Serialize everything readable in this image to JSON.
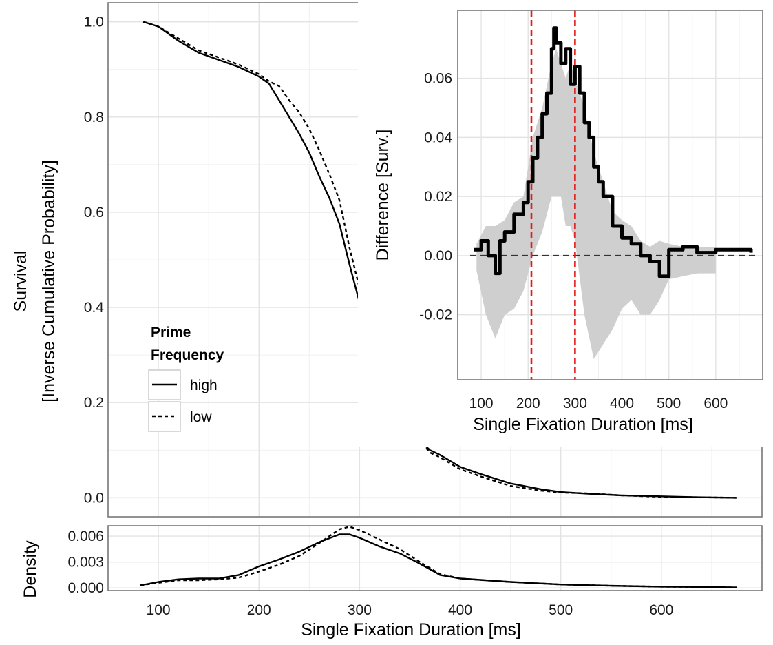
{
  "chart_data": [
    {
      "type": "line",
      "name": "survival",
      "ylabel_line1": "Survival",
      "ylabel_line2": "[Inverse Cumulative Probability]",
      "xlim": [
        50,
        700
      ],
      "ylim": [
        -0.04,
        1.04
      ],
      "yticks": [
        "0.0",
        "0.2",
        "0.4",
        "0.6",
        "0.8",
        "1.0"
      ],
      "grid": true,
      "legend": {
        "title_line1": "Prime",
        "title_line2": "Frequency",
        "placement": "center-left",
        "entries": [
          "high",
          "low"
        ]
      },
      "series": [
        {
          "name": "high",
          "style": "solid",
          "x": [
            85,
            100,
            120,
            140,
            160,
            180,
            200,
            210,
            220,
            230,
            240,
            250,
            260,
            270,
            280,
            290,
            300,
            310,
            320,
            330,
            340,
            350,
            360,
            370,
            380,
            400,
            420,
            450,
            480,
            500,
            530,
            560,
            600,
            640,
            675
          ],
          "y": [
            1.0,
            0.99,
            0.96,
            0.935,
            0.92,
            0.905,
            0.885,
            0.87,
            0.835,
            0.8,
            0.765,
            0.725,
            0.675,
            0.63,
            0.575,
            0.49,
            0.41,
            0.35,
            0.3,
            0.24,
            0.2,
            0.16,
            0.12,
            0.1,
            0.09,
            0.065,
            0.05,
            0.03,
            0.018,
            0.012,
            0.008,
            0.005,
            0.003,
            0.001,
            0.0
          ]
        },
        {
          "name": "low",
          "style": "dashed",
          "x": [
            85,
            100,
            120,
            140,
            160,
            180,
            200,
            210,
            220,
            230,
            240,
            250,
            260,
            270,
            280,
            290,
            300,
            310,
            320,
            330,
            340,
            350,
            360,
            370,
            380,
            400,
            420,
            450,
            480,
            500,
            530,
            560,
            600,
            640,
            675
          ],
          "y": [
            1.0,
            0.99,
            0.965,
            0.94,
            0.925,
            0.91,
            0.89,
            0.875,
            0.865,
            0.835,
            0.81,
            0.775,
            0.73,
            0.68,
            0.625,
            0.525,
            0.44,
            0.37,
            0.31,
            0.245,
            0.195,
            0.155,
            0.12,
            0.095,
            0.085,
            0.06,
            0.045,
            0.025,
            0.015,
            0.011,
            0.009,
            0.005,
            0.002,
            0.001,
            0.0
          ]
        }
      ]
    },
    {
      "type": "line",
      "name": "density",
      "ylabel": "Density",
      "xlabel": "Single Fixation Duration [ms]",
      "xlim": [
        50,
        700
      ],
      "ylim": [
        -0.0003,
        0.0072
      ],
      "xticks": [
        "100",
        "200",
        "300",
        "400",
        "500",
        "600"
      ],
      "yticks": [
        "0.000",
        "0.003",
        "0.006"
      ],
      "grid": true,
      "series": [
        {
          "name": "high",
          "style": "solid",
          "x": [
            82,
            100,
            120,
            140,
            160,
            180,
            200,
            220,
            240,
            260,
            280,
            290,
            300,
            320,
            340,
            360,
            380,
            400,
            450,
            500,
            550,
            600,
            650,
            675
          ],
          "y": [
            0.0003,
            0.0007,
            0.001,
            0.0011,
            0.0011,
            0.0015,
            0.0025,
            0.0033,
            0.0042,
            0.0053,
            0.0062,
            0.0062,
            0.0058,
            0.0048,
            0.004,
            0.0028,
            0.0015,
            0.0011,
            0.0007,
            0.0004,
            0.00025,
            0.00015,
            0.0001,
            5e-05
          ]
        },
        {
          "name": "low",
          "style": "dashed",
          "x": [
            82,
            100,
            120,
            140,
            160,
            180,
            200,
            220,
            240,
            260,
            280,
            290,
            300,
            320,
            340,
            360,
            380,
            400,
            450,
            500,
            550,
            600,
            650,
            675
          ],
          "y": [
            0.0003,
            0.0006,
            0.0009,
            0.0009,
            0.001,
            0.0012,
            0.0019,
            0.0027,
            0.0037,
            0.0052,
            0.0068,
            0.0071,
            0.0067,
            0.0056,
            0.0045,
            0.003,
            0.0016,
            0.0011,
            0.0007,
            0.0004,
            0.00025,
            0.00015,
            0.0001,
            5e-05
          ]
        }
      ]
    },
    {
      "type": "line",
      "name": "difference-inset",
      "ylabel": "Difference [Surv.]",
      "xlabel": "Single Fixation Duration [ms]",
      "xlim": [
        50,
        700
      ],
      "ylim": [
        -0.042,
        0.083
      ],
      "xticks": [
        "100",
        "200",
        "300",
        "400",
        "500",
        "600"
      ],
      "yticks": [
        "-0.02",
        "0.00",
        "0.02",
        "0.04",
        "0.06"
      ],
      "grid": true,
      "reference_lines": {
        "horizontal_dashed": 0.0,
        "vertical_red_dashed": [
          207,
          300
        ]
      },
      "interval": {
        "x": [
          90,
          110,
          130,
          150,
          170,
          190,
          210,
          230,
          250,
          260,
          270,
          280,
          290,
          300,
          320,
          340,
          360,
          380,
          400,
          420,
          440,
          460,
          480,
          500,
          530,
          560,
          600
        ],
        "lower": [
          -0.005,
          -0.02,
          -0.028,
          -0.02,
          -0.018,
          -0.012,
          0.0,
          0.008,
          0.02,
          0.02,
          0.02,
          0.01,
          0.01,
          0.005,
          -0.02,
          -0.035,
          -0.03,
          -0.025,
          -0.018,
          -0.015,
          -0.02,
          -0.02,
          -0.015,
          -0.008,
          -0.007,
          -0.006,
          -0.006
        ],
        "upper": [
          0.004,
          0.01,
          0.01,
          0.012,
          0.018,
          0.02,
          0.04,
          0.05,
          0.065,
          0.07,
          0.065,
          0.06,
          0.065,
          0.06,
          0.05,
          0.035,
          0.025,
          0.015,
          0.012,
          0.01,
          0.005,
          0.003,
          0.005,
          0.004,
          0.003,
          0.003,
          0.003
        ]
      },
      "series": [
        {
          "name": "difference",
          "style": "solid",
          "x": [
            85,
            100,
            115,
            130,
            140,
            150,
            170,
            190,
            200,
            210,
            220,
            230,
            240,
            250,
            255,
            260,
            270,
            280,
            290,
            300,
            310,
            320,
            330,
            340,
            350,
            360,
            380,
            400,
            420,
            440,
            460,
            480,
            500,
            530,
            560,
            600,
            640,
            675
          ],
          "y": [
            0.002,
            0.005,
            0.0,
            -0.006,
            0.005,
            0.008,
            0.014,
            0.018,
            0.025,
            0.033,
            0.04,
            0.048,
            0.055,
            0.07,
            0.077,
            0.072,
            0.065,
            0.07,
            0.058,
            0.064,
            0.055,
            0.045,
            0.04,
            0.03,
            0.025,
            0.02,
            0.01,
            0.006,
            0.004,
            0.0,
            -0.002,
            -0.007,
            0.002,
            0.003,
            0.001,
            0.002,
            0.002,
            0.001
          ]
        }
      ]
    }
  ]
}
